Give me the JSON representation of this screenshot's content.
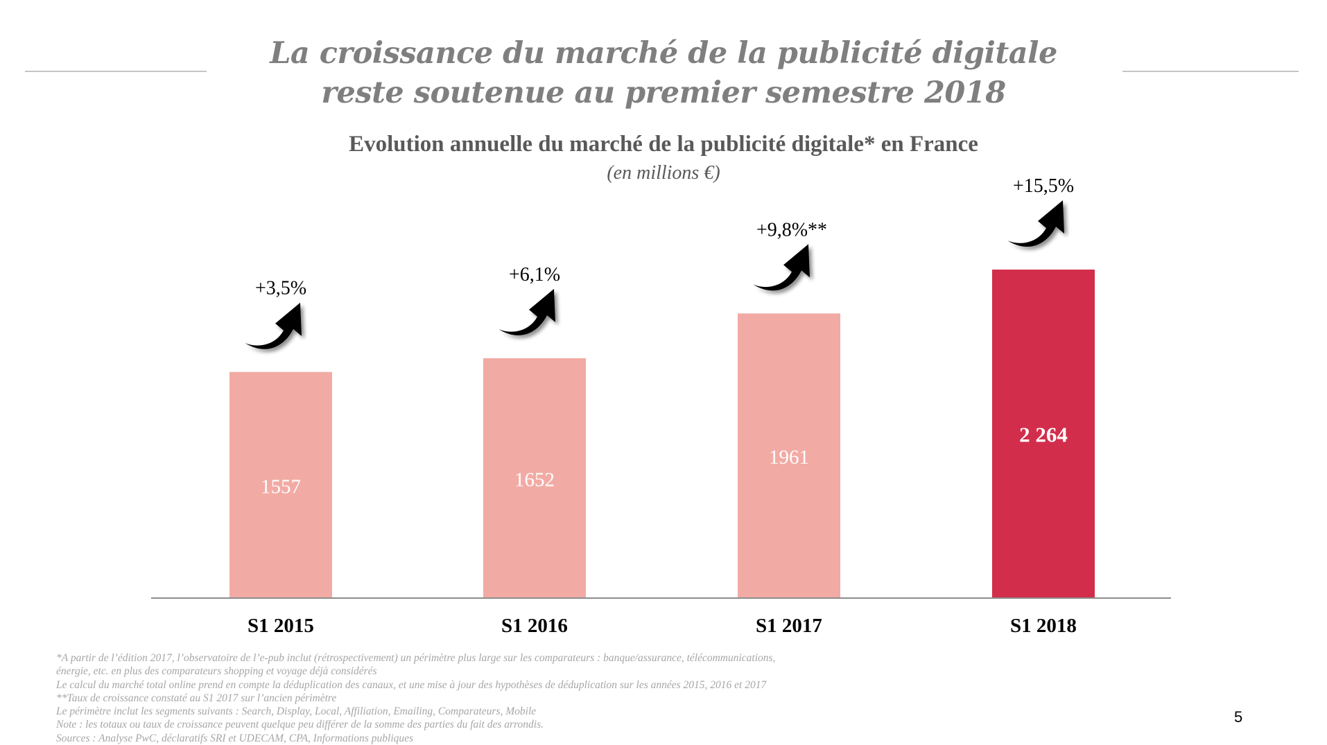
{
  "slide": {
    "title_lines": [
      "La croissance du marché de la publicité digitale",
      "reste soutenue au premier semestre 2018"
    ],
    "page_number": "5"
  },
  "chart_data": {
    "type": "bar",
    "title": "Evolution annuelle du marché de la publicité digitale* en France",
    "subtitle": "(en millions €)",
    "xlabel": "",
    "ylabel": "",
    "ylim": [
      0,
      2264
    ],
    "grid": false,
    "categories": [
      "S1 2015",
      "S1 2016",
      "S1 2017",
      "S1 2018"
    ],
    "values": [
      1557,
      1652,
      1961,
      2264
    ],
    "value_labels": [
      "1557",
      "1652",
      "1961",
      "2 264"
    ],
    "growth_labels": [
      "+3,5%",
      "+6,1%",
      "+9,8%**",
      "+15,5%"
    ],
    "highlight_index": 3,
    "colors": {
      "bar": "#f2aba4",
      "highlight": "#d22e4c",
      "value_label": "#ffffff",
      "axis": "#8c8c8c",
      "arrow": "#000000"
    }
  },
  "footnotes": [
    "*A partir de l’édition 2017, l’observatoire de l’e-pub inclut (rétrospectivement) un périmètre plus large sur les comparateurs : banque/assurance, télécommunications,",
    "énergie, etc. en plus des comparateurs shopping et voyage déjà considérés",
    "Le calcul du marché total online prend en compte la déduplication des canaux, et une mise à jour des hypothèses de déduplication sur les années 2015, 2016 et 2017",
    "**Taux de croissance constaté au S1 2017 sur l’ancien périmètre",
    "Le périmètre inclut les segments suivants : Search, Display, Local, Affiliation, Emailing, Comparateurs, Mobile",
    "Note : les totaux ou taux de croissance peuvent quelque peu différer de la somme des parties du fait des arrondis.",
    "Sources : Analyse PwC, déclaratifs SRI et UDECAM, CPA, Informations publiques"
  ]
}
